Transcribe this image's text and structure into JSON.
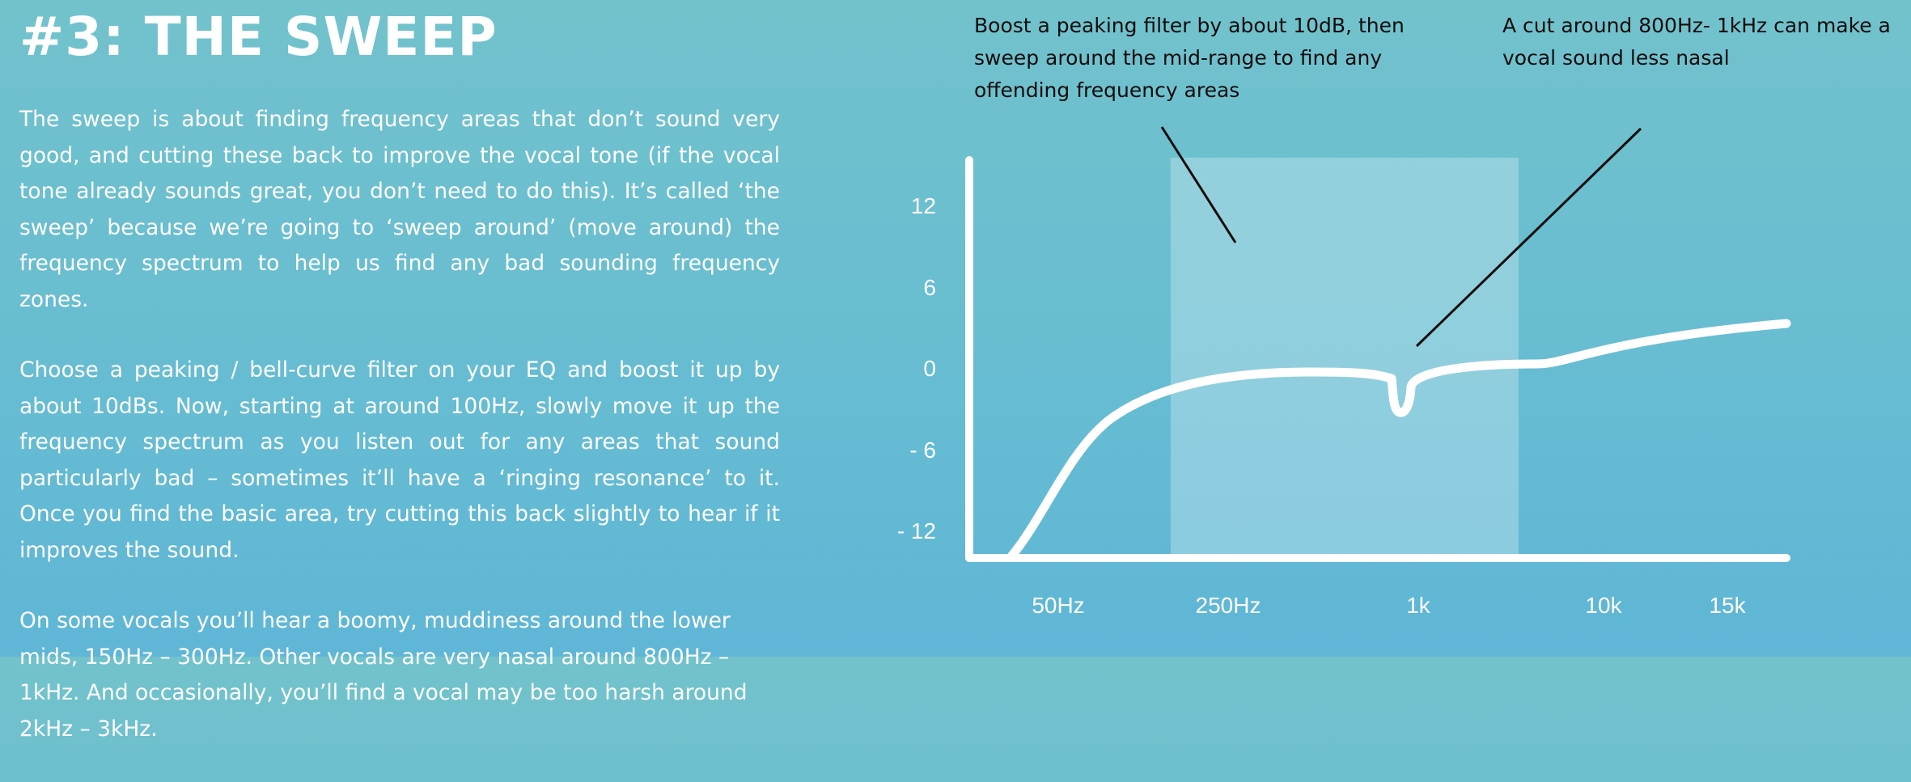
{
  "title": "#3: THE SWEEP",
  "paragraphs": [
    "The sweep is about finding frequency areas that don’t sound very good, and cutting these back to improve the vocal tone (if the vocal tone already sounds great, you don’t need to do this). It’s called ‘the sweep’ because we’re going to ‘sweep around’ (move around) the frequency spectrum to help us find any bad sounding frequency zones.",
    "Choose a peaking / bell-curve filter on your EQ and boost it up by about 10dBs. Now, starting at around 100Hz, slowly move it up the frequency spectrum as you listen out for any areas that sound particularly bad – sometimes it’ll have a ‘ringing resonance’ to it. Once you find the basic area, try cutting this back slightly to hear if it improves the sound.",
    "On some vocals you’ll hear a boomy, muddiness around the lower mids, 150Hz – 300Hz. Other vocals are very nasal around 800Hz – 1kHz. And occasionally, you’ll find a vocal may be too harsh around 2kHz – 3kHz."
  ],
  "annotations": {
    "sweep": "Boost a peaking filter by about 10dB, then sweep around the mid-range to find any offending frequency areas",
    "cut": "A cut around 800Hz- 1kHz can make a vocal sound less nasal"
  },
  "chart": {
    "y_ticks": [
      "12",
      "6",
      "0",
      "- 6",
      "- 12"
    ],
    "x_ticks": [
      "50Hz",
      "250Hz",
      "1k",
      "10k",
      "15k"
    ],
    "colors": {
      "curve": "#ffffff",
      "axes": "#ffffff",
      "sweep_region": "#ffffff",
      "pointer": "#0d0d0d"
    }
  }
}
